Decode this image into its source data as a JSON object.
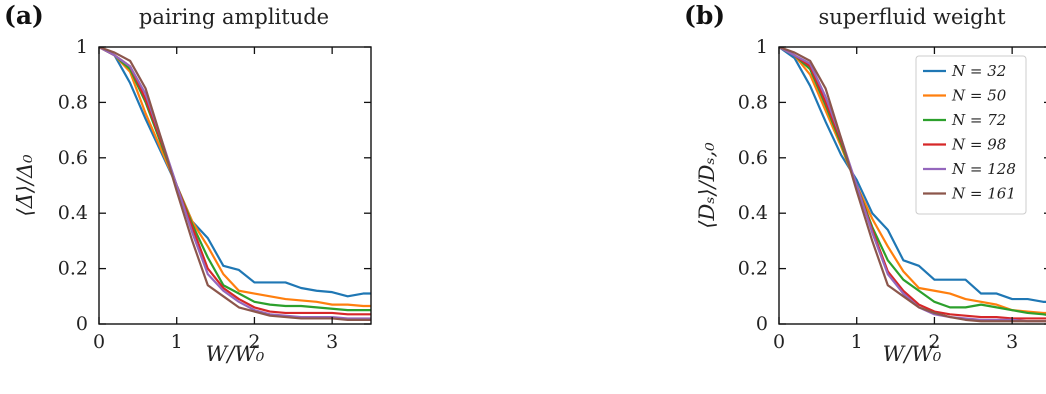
{
  "chart_data": [
    {
      "type": "line",
      "panel_label": "(a)",
      "title": "pairing amplitude",
      "xlabel": "W/W₀",
      "ylabel": "⟨Δ̄⟩/Δ₀",
      "xlim": [
        0,
        3.5
      ],
      "ylim": [
        0,
        1
      ],
      "xticks": [
        0,
        1,
        2,
        3
      ],
      "xtick_labels": [
        "0",
        "1",
        "2",
        "3"
      ],
      "yticks": [
        0,
        0.2,
        0.4,
        0.6,
        0.8,
        1
      ],
      "ytick_labels": [
        "0",
        "0.2",
        "0.4",
        "0.6",
        "0.8",
        "1"
      ],
      "grid": false,
      "legend": false,
      "x": [
        0,
        0.2,
        0.4,
        0.6,
        0.8,
        1.0,
        1.2,
        1.4,
        1.6,
        1.8,
        2.0,
        2.2,
        2.4,
        2.6,
        2.8,
        3.0,
        3.2,
        3.4,
        3.5
      ],
      "series": [
        {
          "name": "N = 32",
          "color": "#1f77b4",
          "values": [
            1.0,
            0.97,
            0.87,
            0.74,
            0.62,
            0.5,
            0.37,
            0.31,
            0.21,
            0.195,
            0.15,
            0.15,
            0.15,
            0.13,
            0.12,
            0.115,
            0.1,
            0.11,
            0.11
          ]
        },
        {
          "name": "N = 50",
          "color": "#ff7f0e",
          "values": [
            1.0,
            0.97,
            0.91,
            0.76,
            0.63,
            0.5,
            0.37,
            0.28,
            0.18,
            0.12,
            0.11,
            0.1,
            0.09,
            0.085,
            0.08,
            0.07,
            0.07,
            0.065,
            0.065
          ]
        },
        {
          "name": "N = 72",
          "color": "#2ca02c",
          "values": [
            1.0,
            0.97,
            0.92,
            0.8,
            0.65,
            0.5,
            0.36,
            0.24,
            0.14,
            0.11,
            0.08,
            0.07,
            0.065,
            0.065,
            0.06,
            0.055,
            0.05,
            0.05,
            0.05
          ]
        },
        {
          "name": "N = 98",
          "color": "#d62728",
          "values": [
            1.0,
            0.97,
            0.93,
            0.81,
            0.66,
            0.5,
            0.35,
            0.2,
            0.13,
            0.09,
            0.06,
            0.045,
            0.04,
            0.04,
            0.04,
            0.04,
            0.035,
            0.035,
            0.035
          ]
        },
        {
          "name": "N = 128",
          "color": "#9467bd",
          "values": [
            1.0,
            0.97,
            0.93,
            0.83,
            0.67,
            0.5,
            0.33,
            0.18,
            0.12,
            0.08,
            0.05,
            0.035,
            0.03,
            0.025,
            0.025,
            0.025,
            0.02,
            0.02,
            0.02
          ]
        },
        {
          "name": "N = 161",
          "color": "#8c564b",
          "values": [
            1.0,
            0.98,
            0.95,
            0.85,
            0.67,
            0.48,
            0.3,
            0.14,
            0.1,
            0.06,
            0.045,
            0.03,
            0.025,
            0.02,
            0.02,
            0.02,
            0.015,
            0.015,
            0.015
          ]
        }
      ]
    },
    {
      "type": "line",
      "panel_label": "(b)",
      "title": "superfluid weight",
      "xlabel": "W/W₀",
      "ylabel": "⟨Dₛ⟩/Dₛ,₀",
      "xlim": [
        0,
        3.5
      ],
      "ylim": [
        0,
        1
      ],
      "xticks": [
        0,
        1,
        2,
        3
      ],
      "xtick_labels": [
        "0",
        "1",
        "2",
        "3"
      ],
      "yticks": [
        0,
        0.2,
        0.4,
        0.6,
        0.8,
        1
      ],
      "ytick_labels": [
        "0",
        "0.2",
        "0.4",
        "0.6",
        "0.8",
        "1"
      ],
      "grid": false,
      "legend": "top-right",
      "x": [
        0,
        0.2,
        0.4,
        0.6,
        0.8,
        1.0,
        1.2,
        1.4,
        1.6,
        1.8,
        2.0,
        2.2,
        2.4,
        2.6,
        2.8,
        3.0,
        3.2,
        3.4,
        3.5
      ],
      "series": [
        {
          "name": "N = 32",
          "color": "#1f77b4",
          "values": [
            1.0,
            0.96,
            0.86,
            0.73,
            0.61,
            0.52,
            0.4,
            0.34,
            0.23,
            0.21,
            0.16,
            0.16,
            0.16,
            0.11,
            0.11,
            0.09,
            0.09,
            0.08,
            0.08
          ]
        },
        {
          "name": "N = 50",
          "color": "#ff7f0e",
          "values": [
            1.0,
            0.97,
            0.9,
            0.77,
            0.64,
            0.5,
            0.38,
            0.28,
            0.19,
            0.13,
            0.12,
            0.11,
            0.09,
            0.08,
            0.07,
            0.05,
            0.045,
            0.04,
            0.04
          ]
        },
        {
          "name": "N = 72",
          "color": "#2ca02c",
          "values": [
            1.0,
            0.97,
            0.92,
            0.79,
            0.65,
            0.5,
            0.35,
            0.23,
            0.16,
            0.12,
            0.08,
            0.06,
            0.06,
            0.07,
            0.06,
            0.05,
            0.04,
            0.035,
            0.03
          ]
        },
        {
          "name": "N = 98",
          "color": "#d62728",
          "values": [
            1.0,
            0.97,
            0.93,
            0.8,
            0.66,
            0.5,
            0.34,
            0.19,
            0.12,
            0.07,
            0.045,
            0.035,
            0.03,
            0.025,
            0.025,
            0.02,
            0.02,
            0.02,
            0.02
          ]
        },
        {
          "name": "N = 128",
          "color": "#9467bd",
          "values": [
            1.0,
            0.97,
            0.94,
            0.82,
            0.67,
            0.5,
            0.33,
            0.18,
            0.11,
            0.06,
            0.035,
            0.025,
            0.02,
            0.015,
            0.015,
            0.015,
            0.01,
            0.01,
            0.01
          ]
        },
        {
          "name": "N = 161",
          "color": "#8c564b",
          "values": [
            1.0,
            0.98,
            0.95,
            0.85,
            0.67,
            0.48,
            0.3,
            0.14,
            0.1,
            0.06,
            0.04,
            0.025,
            0.015,
            0.01,
            0.01,
            0.01,
            0.01,
            0.01,
            0.01
          ]
        }
      ]
    }
  ]
}
